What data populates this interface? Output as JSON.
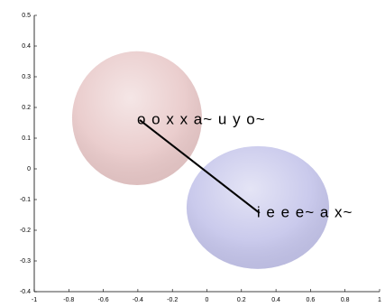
{
  "chart_data": {
    "type": "scatter",
    "xlim": [
      -1,
      1
    ],
    "ylim": [
      -0.4,
      0.5
    ],
    "xticks": [
      -1,
      -0.8,
      -0.6,
      -0.4,
      -0.2,
      0,
      0.2,
      0.4,
      0.6,
      0.8,
      1
    ],
    "yticks": [
      -0.4,
      -0.3,
      -0.2,
      -0.1,
      0,
      0.1,
      0.2,
      0.3,
      0.4,
      0.5
    ],
    "spheres": [
      {
        "x": -0.405,
        "y": 0.165,
        "rx": 0.376,
        "ry": 0.218,
        "color": "#e8c8c8"
      },
      {
        "x": 0.295,
        "y": -0.126,
        "rx": 0.413,
        "ry": 0.2,
        "color": "#c4c4ea"
      }
    ],
    "line": {
      "x": [
        -0.389,
        0.305
      ],
      "y": [
        0.159,
        -0.144
      ],
      "color": "#000000"
    },
    "labels": [
      {
        "text": "o o x x a~ u y o~",
        "x": -0.389,
        "y": 0.159
      },
      {
        "text": "i e e e~ a x~",
        "x": 0.305,
        "y": -0.144
      }
    ]
  }
}
